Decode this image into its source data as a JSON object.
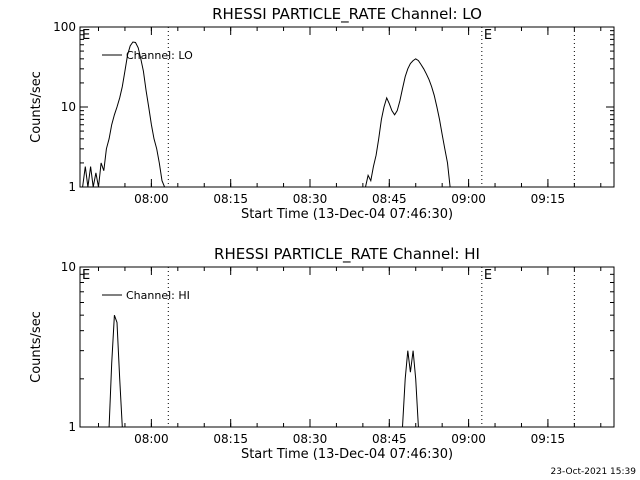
{
  "footer": {
    "timestamp": "23-Oct-2021 15:39"
  },
  "chart_data": [
    {
      "type": "line",
      "title": "RHESSI PARTICLE_RATE Channel: LO",
      "xlabel": "Start Time (13-Dec-04 07:46:30)",
      "ylabel": "Counts/sec",
      "yscale": "log",
      "xunit": "minutes since 07:46:30",
      "xlim": [
        0,
        101
      ],
      "ylim": [
        1,
        100
      ],
      "xticks": [
        13.5,
        28.5,
        43.5,
        58.5,
        73.5,
        88.5
      ],
      "xtick_labels": [
        "08:00",
        "08:15",
        "08:30",
        "08:45",
        "09:00",
        "09:15"
      ],
      "yticks": [
        1,
        10,
        100
      ],
      "ytick_labels": [
        "1",
        "10",
        "100"
      ],
      "markers": [
        {
          "x": 0,
          "label": "E"
        },
        {
          "x": 76,
          "label": "E"
        }
      ],
      "dotted_lines": [
        16.7,
        76,
        93.5
      ],
      "legend": "Channel: LO",
      "series": [
        {
          "name": "Channel: LO",
          "segments": [
            [
              [
                0,
                1
              ],
              [
                0.5,
                1
              ],
              [
                1,
                1.8
              ],
              [
                1.5,
                1
              ],
              [
                2,
                1.8
              ],
              [
                2.5,
                1
              ],
              [
                3,
                1.5
              ],
              [
                3.5,
                1
              ],
              [
                4,
                2
              ],
              [
                4.5,
                1.6
              ],
              [
                5,
                3
              ],
              [
                5.5,
                4
              ],
              [
                6,
                6
              ],
              [
                6.5,
                8
              ],
              [
                7,
                10
              ],
              [
                7.5,
                13
              ],
              [
                8,
                18
              ],
              [
                8.5,
                28
              ],
              [
                9,
                45
              ],
              [
                9.5,
                58
              ],
              [
                10,
                65
              ],
              [
                10.5,
                64
              ],
              [
                11,
                55
              ],
              [
                11.5,
                40
              ],
              [
                12,
                28
              ],
              [
                12.5,
                16
              ],
              [
                13,
                10
              ],
              [
                13.5,
                6
              ],
              [
                14,
                4
              ],
              [
                14.5,
                3
              ],
              [
                15,
                2
              ],
              [
                15.5,
                1.2
              ],
              [
                16,
                1
              ]
            ],
            [
              [
                54,
                1
              ],
              [
                54.5,
                1.4
              ],
              [
                55,
                1.2
              ],
              [
                55.5,
                1.8
              ],
              [
                56,
                2.5
              ],
              [
                56.5,
                4
              ],
              [
                57,
                7
              ],
              [
                57.5,
                10
              ],
              [
                58,
                13
              ],
              [
                58.5,
                11
              ],
              [
                59,
                9
              ],
              [
                59.5,
                8
              ],
              [
                60,
                9
              ],
              [
                60.5,
                12
              ],
              [
                61,
                17
              ],
              [
                61.5,
                24
              ],
              [
                62,
                30
              ],
              [
                62.5,
                35
              ],
              [
                63,
                38
              ],
              [
                63.5,
                40
              ],
              [
                64,
                38
              ],
              [
                64.5,
                34
              ],
              [
                65,
                30
              ],
              [
                65.5,
                26
              ],
              [
                66,
                22
              ],
              [
                66.5,
                18
              ],
              [
                67,
                14
              ],
              [
                67.5,
                10
              ],
              [
                68,
                7
              ],
              [
                68.5,
                4.5
              ],
              [
                69,
                3
              ],
              [
                69.5,
                2
              ],
              [
                70,
                1
              ]
            ]
          ]
        }
      ]
    },
    {
      "type": "line",
      "title": "RHESSI PARTICLE_RATE Channel: HI",
      "xlabel": "Start Time (13-Dec-04 07:46:30)",
      "ylabel": "Counts/sec",
      "yscale": "log",
      "xunit": "minutes since 07:46:30",
      "xlim": [
        0,
        101
      ],
      "ylim": [
        1,
        10
      ],
      "xticks": [
        13.5,
        28.5,
        43.5,
        58.5,
        73.5,
        88.5
      ],
      "xtick_labels": [
        "08:00",
        "08:15",
        "08:30",
        "08:45",
        "09:00",
        "09:15"
      ],
      "yticks": [
        1,
        10
      ],
      "ytick_labels": [
        "1",
        "10"
      ],
      "markers": [
        {
          "x": 0,
          "label": "E"
        },
        {
          "x": 76,
          "label": "E"
        }
      ],
      "dotted_lines": [
        16.7,
        76,
        93.5
      ],
      "legend": "Channel: HI",
      "series": [
        {
          "name": "Channel: HI",
          "segments": [
            [
              [
                5.5,
                1
              ],
              [
                6,
                2.5
              ],
              [
                6.5,
                5
              ],
              [
                7,
                4.5
              ],
              [
                7.5,
                2
              ],
              [
                8,
                1
              ]
            ],
            [
              [
                61,
                1
              ],
              [
                61.5,
                2
              ],
              [
                62,
                3
              ],
              [
                62.5,
                2.2
              ],
              [
                63,
                3
              ],
              [
                63.5,
                2
              ],
              [
                64,
                1
              ]
            ]
          ]
        }
      ]
    }
  ]
}
